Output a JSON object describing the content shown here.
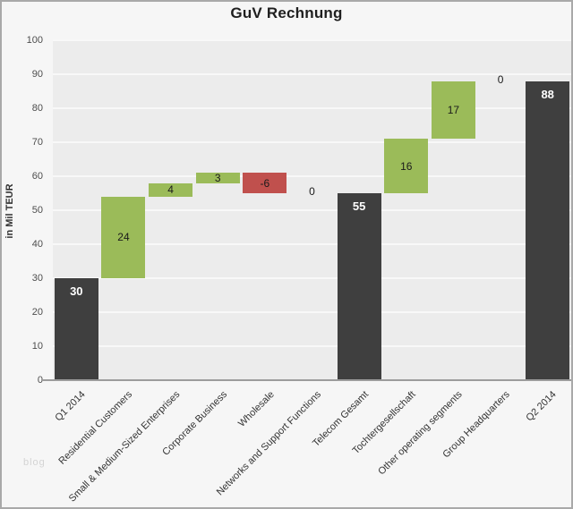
{
  "watermark": "blog",
  "chart_data": {
    "type": "bar",
    "subtype": "waterfall",
    "title": "GuV Rechnung",
    "xlabel": "",
    "ylabel": "in Mil TEUR",
    "ylim": [
      0,
      100
    ],
    "ytick_step": 10,
    "grid": true,
    "legend": false,
    "categories": [
      "Q1 2014",
      "Residential Customers",
      "Small & Medium-Sized Enterprises",
      "Corporate Business",
      "Wholesale",
      "Networks and Support Functions",
      "Telecom Gesamt",
      "Tochtergesellschaft",
      "Other operating segments",
      "Group Headquarters",
      "Q2 2014"
    ],
    "bars": [
      {
        "label": "Q1 2014",
        "value": 30,
        "display": "30",
        "start": 0,
        "end": 30,
        "kind": "total"
      },
      {
        "label": "Residential Customers",
        "value": 24,
        "display": "24",
        "start": 30,
        "end": 54,
        "kind": "increase"
      },
      {
        "label": "Small & Medium-Sized Enterprises",
        "value": 4,
        "display": "4",
        "start": 54,
        "end": 58,
        "kind": "increase"
      },
      {
        "label": "Corporate Business",
        "value": 3,
        "display": "3",
        "start": 58,
        "end": 61,
        "kind": "increase"
      },
      {
        "label": "Wholesale",
        "value": -6,
        "display": "-6",
        "start": 61,
        "end": 55,
        "kind": "decrease"
      },
      {
        "label": "Networks and Support Functions",
        "value": 0,
        "display": "0",
        "start": 55,
        "end": 55,
        "kind": "zero"
      },
      {
        "label": "Telecom Gesamt",
        "value": 55,
        "display": "55",
        "start": 0,
        "end": 55,
        "kind": "total"
      },
      {
        "label": "Tochtergesellschaft",
        "value": 16,
        "display": "16",
        "start": 55,
        "end": 71,
        "kind": "increase"
      },
      {
        "label": "Other operating segments",
        "value": 17,
        "display": "17",
        "start": 71,
        "end": 88,
        "kind": "increase"
      },
      {
        "label": "Group Headquarters",
        "value": 0,
        "display": "0",
        "start": 88,
        "end": 88,
        "kind": "zero"
      },
      {
        "label": "Q2 2014",
        "value": 88,
        "display": "88",
        "start": 0,
        "end": 88,
        "kind": "total"
      }
    ],
    "colors": {
      "total": "#3f3f3f",
      "increase": "#9bbb59",
      "decrease": "#c0504d",
      "plot_background": "#ececec",
      "gridline": "#f8f8f8",
      "outer_background": "#f6f6f6",
      "axis_line": "#9c9c9c",
      "total_label_text": "#ffffff",
      "delta_label_text": "#1a1a1a"
    }
  }
}
